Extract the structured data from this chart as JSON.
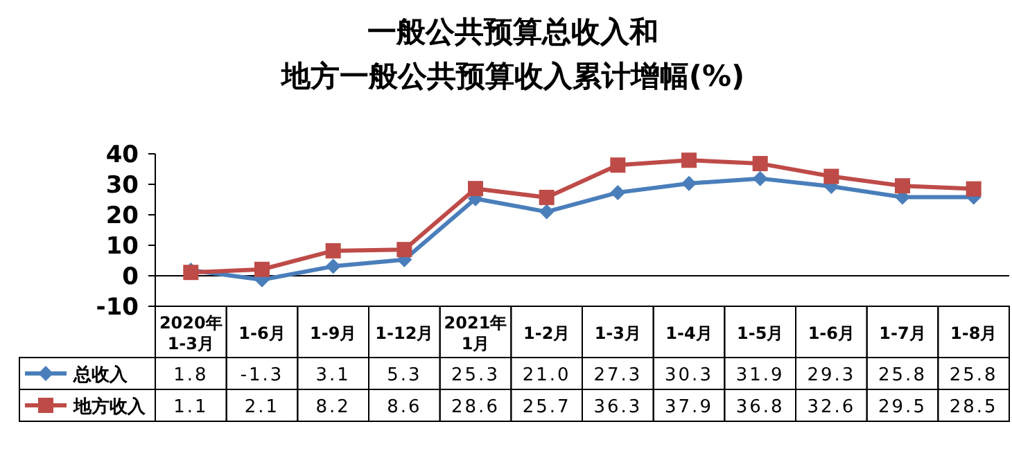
{
  "chart_data": {
    "type": "line",
    "title": "一般公共预算总收入和",
    "subtitle": "地方一般公共预算收入累计增幅(%)",
    "categories": [
      "2020年\n1-3月",
      "1-6月",
      "1-9月",
      "1-12月",
      "2021年\n1月",
      "1-2月",
      "1-3月",
      "1-4月",
      "1-5月",
      "1-6月",
      "1-7月",
      "1-8月"
    ],
    "series": [
      {
        "name": "总收入",
        "color": "#4a7ebb",
        "marker": "diamond",
        "values": [
          1.8,
          -1.3,
          3.1,
          5.3,
          25.3,
          21.0,
          27.3,
          30.3,
          31.9,
          29.3,
          25.8,
          25.8
        ],
        "value_labels": [
          "1.8",
          "-1.3",
          "3.1",
          "5.3",
          "25.3",
          "21.0",
          "27.3",
          "30.3",
          "31.9",
          "29.3",
          "25.8",
          "25.8"
        ]
      },
      {
        "name": "地方收入",
        "color": "#be4b48",
        "marker": "square",
        "values": [
          1.1,
          2.1,
          8.2,
          8.6,
          28.6,
          25.7,
          36.3,
          37.9,
          36.8,
          32.6,
          29.5,
          28.5
        ],
        "value_labels": [
          "1.1",
          "2.1",
          "8.2",
          "8.6",
          "28.6",
          "25.7",
          "36.3",
          "37.9",
          "36.8",
          "32.6",
          "29.5",
          "28.5"
        ]
      }
    ],
    "ylim": [
      -10,
      40
    ],
    "yticks": [
      -10,
      0,
      10,
      20,
      30,
      40
    ],
    "grid": false,
    "legend": "bottom left",
    "line_style": "solid"
  }
}
